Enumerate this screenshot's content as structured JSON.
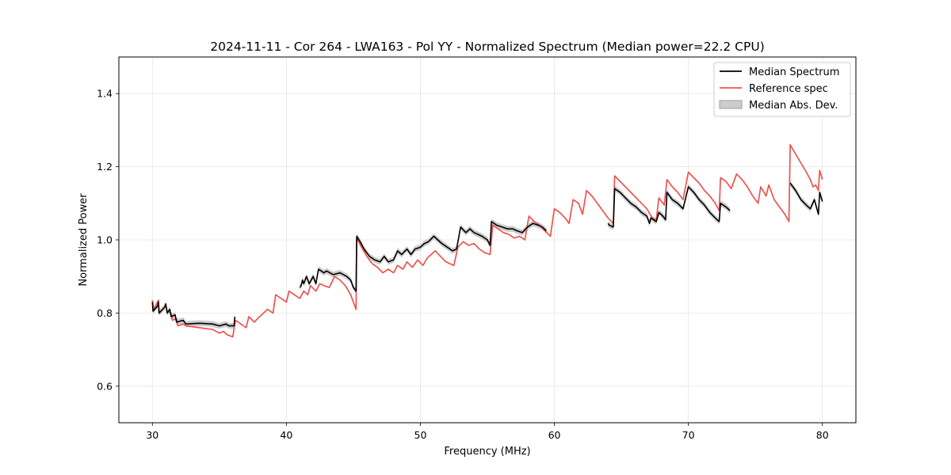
{
  "chart_data": {
    "type": "line",
    "title": "2024-11-11 - Cor 264 - LWA163 - Pol YY - Normalized Spectrum (Median power=22.2 CPU)",
    "xlabel": "Frequency (MHz)",
    "ylabel": "Normalized Power",
    "xlim": [
      27.5,
      82.5
    ],
    "ylim": [
      0.5,
      1.5
    ],
    "xticks": [
      30,
      40,
      50,
      60,
      70,
      80
    ],
    "xtick_labels": [
      "30",
      "40",
      "50",
      "60",
      "70",
      "80"
    ],
    "yticks": [
      0.6,
      0.8,
      1.0,
      1.2,
      1.4
    ],
    "ytick_labels": [
      "0.6",
      "0.8",
      "1.0",
      "1.2",
      "1.4"
    ],
    "grid": true,
    "legend_position": "top-right",
    "legend": [
      "Median Spectrum",
      "Reference spec",
      "Median Abs. Dev."
    ],
    "colors": {
      "median": "#000000",
      "reference": "#ef5350",
      "mad": "#aaaaaa"
    },
    "series": [
      {
        "name": "Median Spectrum",
        "segments": [
          [
            [
              30.0,
              0.83
            ],
            [
              30.05,
              0.805
            ],
            [
              30.4,
              0.82
            ],
            [
              30.45,
              0.83
            ],
            [
              30.5,
              0.8
            ],
            [
              30.9,
              0.815
            ],
            [
              31.0,
              0.825
            ],
            [
              31.1,
              0.8
            ],
            [
              31.3,
              0.81
            ],
            [
              31.4,
              0.79
            ],
            [
              31.7,
              0.795
            ],
            [
              31.8,
              0.775
            ],
            [
              32.3,
              0.78
            ],
            [
              32.5,
              0.77
            ],
            [
              33.5,
              0.772
            ],
            [
              34.5,
              0.77
            ],
            [
              35.0,
              0.765
            ],
            [
              35.5,
              0.77
            ],
            [
              35.7,
              0.765
            ],
            [
              36.1,
              0.765
            ],
            [
              36.15,
              0.79
            ]
          ],
          [
            [
              41.0,
              0.87
            ],
            [
              41.1,
              0.875
            ],
            [
              41.2,
              0.89
            ],
            [
              41.3,
              0.88
            ],
            [
              41.5,
              0.9
            ],
            [
              41.7,
              0.88
            ],
            [
              42.0,
              0.9
            ],
            [
              42.2,
              0.88
            ],
            [
              42.4,
              0.92
            ],
            [
              42.8,
              0.91
            ],
            [
              43.0,
              0.915
            ],
            [
              43.5,
              0.905
            ],
            [
              44.0,
              0.91
            ],
            [
              44.5,
              0.9
            ],
            [
              44.8,
              0.89
            ],
            [
              45.0,
              0.87
            ],
            [
              45.2,
              0.86
            ],
            [
              45.25,
              1.01
            ],
            [
              45.5,
              0.995
            ],
            [
              45.8,
              0.975
            ],
            [
              46.2,
              0.955
            ],
            [
              46.6,
              0.945
            ],
            [
              47.0,
              0.94
            ],
            [
              47.3,
              0.955
            ],
            [
              47.6,
              0.94
            ],
            [
              48.0,
              0.945
            ],
            [
              48.3,
              0.97
            ],
            [
              48.6,
              0.96
            ],
            [
              49.0,
              0.975
            ],
            [
              49.3,
              0.96
            ],
            [
              49.6,
              0.975
            ],
            [
              50.0,
              0.98
            ],
            [
              50.3,
              0.99
            ],
            [
              50.6,
              0.995
            ],
            [
              51.0,
              1.01
            ],
            [
              51.3,
              1.0
            ],
            [
              51.6,
              0.99
            ],
            [
              52.0,
              0.98
            ],
            [
              52.4,
              0.97
            ],
            [
              52.7,
              0.975
            ],
            [
              53.0,
              1.035
            ],
            [
              53.4,
              1.02
            ],
            [
              53.7,
              1.03
            ],
            [
              54.0,
              1.02
            ],
            [
              54.3,
              1.015
            ],
            [
              54.6,
              1.01
            ],
            [
              55.0,
              1.0
            ],
            [
              55.2,
              0.985
            ],
            [
              55.3,
              1.05
            ],
            [
              55.7,
              1.04
            ],
            [
              56.1,
              1.035
            ],
            [
              56.5,
              1.03
            ],
            [
              56.9,
              1.03
            ],
            [
              57.2,
              1.025
            ],
            [
              57.6,
              1.02
            ],
            [
              58.0,
              1.035
            ],
            [
              58.4,
              1.045
            ],
            [
              58.8,
              1.04
            ],
            [
              59.1,
              1.035
            ],
            [
              59.4,
              1.025
            ]
          ],
          [
            [
              64.0,
              1.045
            ],
            [
              64.1,
              1.04
            ],
            [
              64.4,
              1.035
            ],
            [
              64.5,
              1.14
            ],
            [
              64.9,
              1.13
            ],
            [
              65.3,
              1.115
            ],
            [
              65.7,
              1.1
            ],
            [
              66.1,
              1.09
            ],
            [
              66.5,
              1.075
            ],
            [
              66.9,
              1.065
            ],
            [
              67.1,
              1.045
            ],
            [
              67.2,
              1.06
            ],
            [
              67.6,
              1.05
            ],
            [
              67.8,
              1.075
            ],
            [
              68.1,
              1.065
            ],
            [
              68.3,
              1.055
            ],
            [
              68.4,
              1.13
            ],
            [
              68.8,
              1.11
            ],
            [
              69.2,
              1.1
            ],
            [
              69.6,
              1.085
            ],
            [
              70.0,
              1.145
            ],
            [
              70.4,
              1.13
            ],
            [
              70.8,
              1.11
            ],
            [
              71.2,
              1.095
            ],
            [
              71.6,
              1.075
            ],
            [
              72.0,
              1.06
            ],
            [
              72.3,
              1.05
            ],
            [
              72.4,
              1.1
            ],
            [
              72.8,
              1.09
            ],
            [
              73.1,
              1.08
            ]
          ],
          [
            [
              77.6,
              1.155
            ],
            [
              78.0,
              1.135
            ],
            [
              78.4,
              1.11
            ],
            [
              78.8,
              1.095
            ],
            [
              79.1,
              1.085
            ],
            [
              79.4,
              1.11
            ],
            [
              79.7,
              1.07
            ],
            [
              79.8,
              1.13
            ],
            [
              80.0,
              1.105
            ]
          ]
        ]
      },
      {
        "name": "Reference spec",
        "segments": [
          [
            [
              30.0,
              0.835
            ],
            [
              30.1,
              0.81
            ],
            [
              30.45,
              0.835
            ],
            [
              30.5,
              0.8
            ],
            [
              31.0,
              0.82
            ],
            [
              31.1,
              0.805
            ],
            [
              31.4,
              0.8
            ],
            [
              31.5,
              0.78
            ],
            [
              31.8,
              0.785
            ],
            [
              31.9,
              0.765
            ],
            [
              32.3,
              0.77
            ],
            [
              32.5,
              0.765
            ],
            [
              33.5,
              0.76
            ],
            [
              34.5,
              0.755
            ],
            [
              35.0,
              0.745
            ],
            [
              35.3,
              0.75
            ],
            [
              35.6,
              0.74
            ],
            [
              36.0,
              0.735
            ],
            [
              36.2,
              0.78
            ],
            [
              36.6,
              0.77
            ],
            [
              37.0,
              0.76
            ],
            [
              37.2,
              0.79
            ],
            [
              37.6,
              0.775
            ],
            [
              38.0,
              0.79
            ],
            [
              38.3,
              0.8
            ],
            [
              38.6,
              0.81
            ],
            [
              39.0,
              0.8
            ],
            [
              39.2,
              0.85
            ],
            [
              39.6,
              0.84
            ],
            [
              40.0,
              0.83
            ],
            [
              40.2,
              0.86
            ],
            [
              40.6,
              0.85
            ],
            [
              41.0,
              0.84
            ],
            [
              41.3,
              0.86
            ],
            [
              41.6,
              0.85
            ],
            [
              41.8,
              0.875
            ],
            [
              42.2,
              0.86
            ],
            [
              42.5,
              0.88
            ],
            [
              42.8,
              0.875
            ],
            [
              43.2,
              0.87
            ],
            [
              43.6,
              0.9
            ],
            [
              44.0,
              0.89
            ],
            [
              44.4,
              0.875
            ],
            [
              44.8,
              0.85
            ],
            [
              45.2,
              0.81
            ],
            [
              45.25,
              1.005
            ],
            [
              45.6,
              0.98
            ],
            [
              46.0,
              0.955
            ],
            [
              46.4,
              0.935
            ],
            [
              46.8,
              0.925
            ],
            [
              47.2,
              0.91
            ],
            [
              47.6,
              0.92
            ],
            [
              48.0,
              0.91
            ],
            [
              48.3,
              0.93
            ],
            [
              48.7,
              0.92
            ],
            [
              49.0,
              0.94
            ],
            [
              49.4,
              0.925
            ],
            [
              49.8,
              0.945
            ],
            [
              50.2,
              0.93
            ],
            [
              50.5,
              0.95
            ],
            [
              50.8,
              0.96
            ],
            [
              51.1,
              0.97
            ],
            [
              51.5,
              0.955
            ],
            [
              51.9,
              0.94
            ],
            [
              52.2,
              0.935
            ],
            [
              52.5,
              0.93
            ],
            [
              52.8,
              0.98
            ],
            [
              53.2,
              0.995
            ],
            [
              53.6,
              0.985
            ],
            [
              54.0,
              0.99
            ],
            [
              54.4,
              0.975
            ],
            [
              54.8,
              0.965
            ],
            [
              55.2,
              0.96
            ],
            [
              55.4,
              1.04
            ],
            [
              55.8,
              1.03
            ],
            [
              56.2,
              1.02
            ],
            [
              56.6,
              1.015
            ],
            [
              57.0,
              1.005
            ],
            [
              57.4,
              1.01
            ],
            [
              57.8,
              1.0
            ],
            [
              58.1,
              1.065
            ],
            [
              58.5,
              1.05
            ],
            [
              58.9,
              1.04
            ],
            [
              59.3,
              1.025
            ],
            [
              59.7,
              1.01
            ],
            [
              60.0,
              1.085
            ],
            [
              60.4,
              1.075
            ],
            [
              60.8,
              1.06
            ],
            [
              61.1,
              1.045
            ],
            [
              61.4,
              1.11
            ],
            [
              61.8,
              1.1
            ],
            [
              62.1,
              1.07
            ],
            [
              62.4,
              1.135
            ],
            [
              62.8,
              1.12
            ],
            [
              63.2,
              1.1
            ],
            [
              63.6,
              1.08
            ],
            [
              64.0,
              1.06
            ],
            [
              64.4,
              1.045
            ],
            [
              64.5,
              1.175
            ],
            [
              64.9,
              1.16
            ],
            [
              65.3,
              1.145
            ],
            [
              65.7,
              1.13
            ],
            [
              66.1,
              1.115
            ],
            [
              66.5,
              1.1
            ],
            [
              66.9,
              1.085
            ],
            [
              67.3,
              1.06
            ],
            [
              67.6,
              1.055
            ],
            [
              67.8,
              1.115
            ],
            [
              68.2,
              1.095
            ],
            [
              68.4,
              1.165
            ],
            [
              68.8,
              1.145
            ],
            [
              69.2,
              1.13
            ],
            [
              69.6,
              1.11
            ],
            [
              70.0,
              1.185
            ],
            [
              70.4,
              1.17
            ],
            [
              70.8,
              1.155
            ],
            [
              71.2,
              1.135
            ],
            [
              71.6,
              1.12
            ],
            [
              72.0,
              1.1
            ],
            [
              72.3,
              1.08
            ],
            [
              72.4,
              1.17
            ],
            [
              72.8,
              1.16
            ],
            [
              73.2,
              1.14
            ],
            [
              73.6,
              1.18
            ],
            [
              74.0,
              1.165
            ],
            [
              74.4,
              1.145
            ],
            [
              74.8,
              1.12
            ],
            [
              75.2,
              1.1
            ],
            [
              75.4,
              1.145
            ],
            [
              75.8,
              1.12
            ],
            [
              76.0,
              1.15
            ],
            [
              76.4,
              1.11
            ],
            [
              76.8,
              1.09
            ],
            [
              77.2,
              1.07
            ],
            [
              77.5,
              1.05
            ],
            [
              77.6,
              1.26
            ],
            [
              78.0,
              1.235
            ],
            [
              78.4,
              1.21
            ],
            [
              78.8,
              1.185
            ],
            [
              79.1,
              1.165
            ],
            [
              79.3,
              1.145
            ],
            [
              79.5,
              1.15
            ],
            [
              79.7,
              1.135
            ],
            [
              79.8,
              1.19
            ],
            [
              80.0,
              1.165
            ]
          ]
        ]
      }
    ],
    "mad_halfwidth": 0.008
  }
}
